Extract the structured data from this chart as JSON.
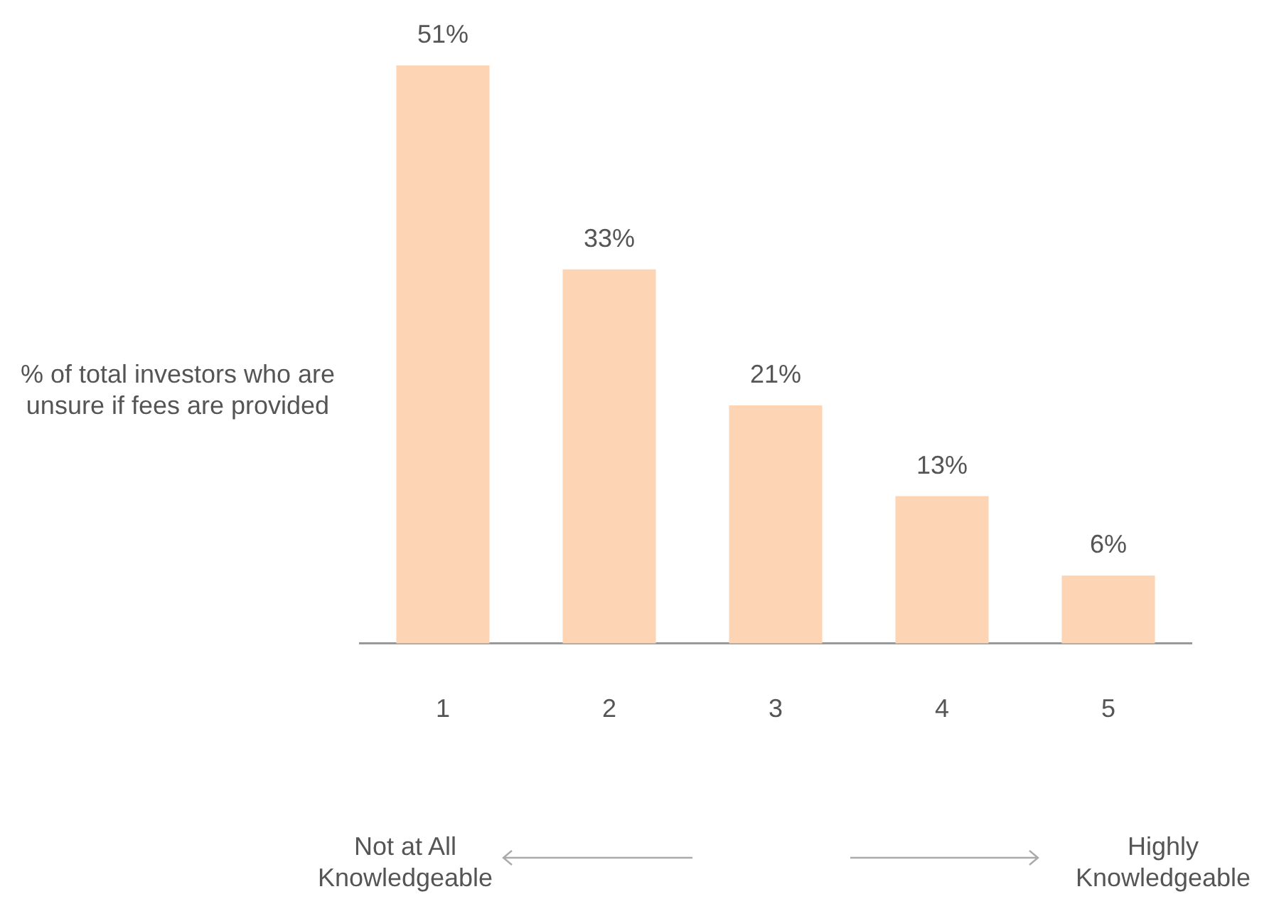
{
  "chart_data": {
    "type": "bar",
    "ylabel": "% of total investors who are unsure if fees are provided",
    "categories": [
      "1",
      "2",
      "3",
      "4",
      "5"
    ],
    "values": [
      51,
      33,
      21,
      13,
      6
    ],
    "value_labels": [
      "51%",
      "33%",
      "21%",
      "13%",
      "6%"
    ],
    "color": "#fdd5b4",
    "annotations": [
      "Not at All Knowledgeable",
      "Highly Knowledgeable"
    ]
  }
}
